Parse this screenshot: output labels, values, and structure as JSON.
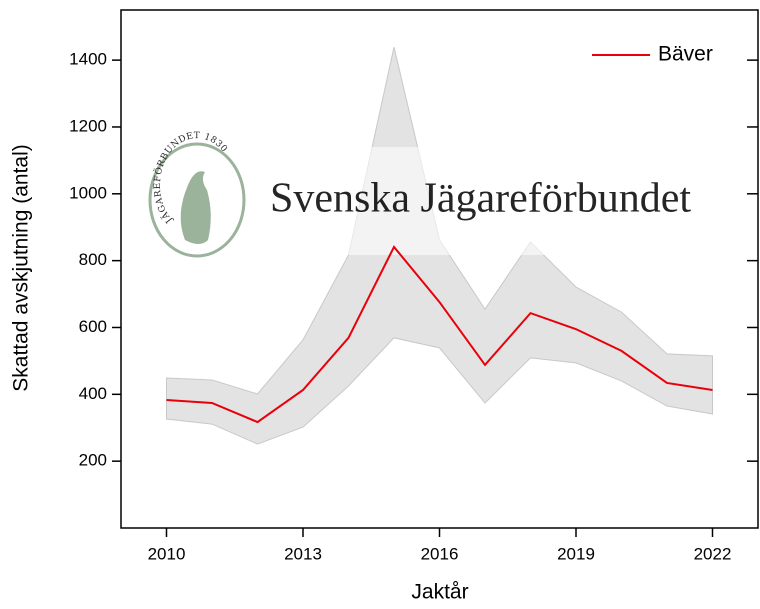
{
  "chart_data": {
    "type": "line",
    "x_label": "Jaktår",
    "y_label": "Skattad avskjutning (antal)",
    "x": [
      2010,
      2011,
      2012,
      2013,
      2014,
      2015,
      2016,
      2017,
      2018,
      2019,
      2020,
      2021,
      2022
    ],
    "series": [
      {
        "name": "Bäver",
        "color": "#e8000b",
        "band_color": "#e3e3e3",
        "values": [
          383,
          374,
          317,
          413,
          569,
          841,
          676,
          488,
          643,
          595,
          530,
          434,
          413
        ],
        "lower": [
          326,
          311,
          251,
          302,
          425,
          569,
          539,
          374,
          509,
          494,
          440,
          365,
          341
        ],
        "upper": [
          449,
          443,
          401,
          563,
          817,
          1439,
          862,
          655,
          856,
          721,
          646,
          521,
          515
        ]
      }
    ],
    "xlim": [
      2009,
      2023
    ],
    "xticks": [
      2010,
      2013,
      2016,
      2019,
      2022
    ],
    "ylim": [
      0,
      1550
    ],
    "yticks": [
      200,
      400,
      600,
      800,
      1000,
      1200,
      1400
    ],
    "legend": "upper right",
    "watermark": {
      "text": "Svenska Jägareförbundet",
      "logo_text": "JÄGAREFÖRBUNDET 1830"
    }
  }
}
